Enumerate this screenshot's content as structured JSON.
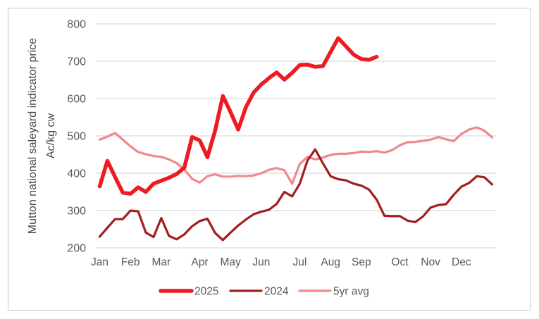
{
  "chart_data": {
    "type": "line",
    "title": "",
    "ylabel_line1": "Mutton national saleyard indicator price",
    "ylabel_line2": "Ac/kg cw",
    "x_unit": "week of year (1-52), weekly data points",
    "months": [
      "Jan",
      "Feb",
      "Mar",
      "Apr",
      "May",
      "Jun",
      "Jul",
      "Aug",
      "Sep",
      "Oct",
      "Nov",
      "Dec"
    ],
    "month_label_weeks": [
      1,
      5,
      9,
      14,
      18,
      22,
      27,
      31,
      35,
      40,
      44,
      48
    ],
    "ylim": [
      200,
      800
    ],
    "y_ticks": [
      "800",
      "700",
      "600",
      "500",
      "400",
      "300",
      "200"
    ],
    "grid": "horizontal",
    "legend_position": "bottom-center",
    "axis_label_color": "#595959",
    "ylabel_color": "#474747",
    "gridline_color": "#d9d9d9",
    "frame_border_color": "#c9c9c9",
    "series": [
      {
        "name": "2025",
        "color": "#ed1b23",
        "stroke_width": 5.5,
        "start_week": 1,
        "values": [
          365,
          433,
          390,
          348,
          345,
          362,
          350,
          372,
          380,
          388,
          398,
          415,
          497,
          488,
          443,
          514,
          607,
          564,
          517,
          577,
          616,
          638,
          655,
          670,
          651,
          669,
          690,
          691,
          685,
          687,
          725,
          762,
          740,
          718,
          706,
          704,
          712
        ]
      },
      {
        "name": "2024",
        "color": "#a21e1e",
        "stroke_width": 3.2,
        "start_week": 1,
        "values": [
          230,
          254,
          277,
          277,
          300,
          298,
          241,
          229,
          280,
          232,
          223,
          236,
          258,
          272,
          278,
          240,
          221,
          241,
          260,
          276,
          290,
          297,
          302,
          318,
          350,
          338,
          372,
          434,
          464,
          427,
          392,
          384,
          381,
          372,
          367,
          356,
          329,
          286,
          285,
          285,
          273,
          269,
          284,
          308,
          315,
          317,
          342,
          364,
          374,
          392,
          389,
          370
        ]
      },
      {
        "name": "5yr avg",
        "color": "#f0888d",
        "stroke_width": 3.2,
        "start_week": 1,
        "values": [
          490,
          498,
          508,
          490,
          472,
          457,
          451,
          446,
          444,
          437,
          427,
          410,
          385,
          375,
          392,
          397,
          391,
          391,
          393,
          392,
          394,
          400,
          409,
          414,
          408,
          372,
          425,
          444,
          437,
          442,
          449,
          452,
          452,
          454,
          458,
          457,
          459,
          455,
          462,
          475,
          483,
          484,
          487,
          490,
          497,
          491,
          486,
          505,
          517,
          523,
          514,
          496
        ]
      }
    ]
  }
}
